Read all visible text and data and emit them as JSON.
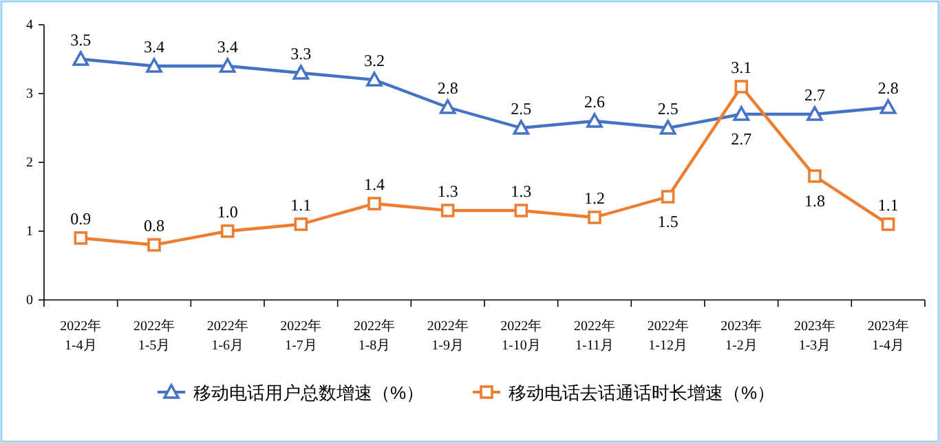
{
  "chart_data": {
    "type": "line",
    "categories": [
      "2022年\n1-4月",
      "2022年\n1-5月",
      "2022年\n1-6月",
      "2022年\n1-7月",
      "2022年\n1-8月",
      "2022年\n1-9月",
      "2022年\n1-10月",
      "2022年\n1-11月",
      "2022年\n1-12月",
      "2023年\n1-2月",
      "2023年\n1-3月",
      "2023年\n1-4月"
    ],
    "series": [
      {
        "name": "移动电话用户总数增速（%）",
        "color": "#4472c4",
        "marker": "triangle",
        "values": [
          3.5,
          3.4,
          3.4,
          3.3,
          3.2,
          2.8,
          2.5,
          2.6,
          2.5,
          2.7,
          2.7,
          2.8
        ],
        "value_labels": [
          "3.5",
          "3.4",
          "3.4",
          "3.3",
          "3.2",
          "2.8",
          "2.5",
          "2.6",
          "2.5",
          "2.7",
          "2.7",
          "2.8"
        ]
      },
      {
        "name": "移动电话去话通话时长增速（%）",
        "color": "#ed7d31",
        "marker": "square",
        "values": [
          0.9,
          0.8,
          1.0,
          1.1,
          1.4,
          1.3,
          1.3,
          1.2,
          1.5,
          3.1,
          1.8,
          1.1
        ],
        "value_labels": [
          "0.9",
          "0.8",
          "1.0",
          "1.1",
          "1.4",
          "1.3",
          "1.3",
          "1.2",
          "1.5",
          "3.1",
          "1.8",
          "1.1"
        ]
      }
    ],
    "ylim": [
      0,
      4
    ],
    "yticks": [
      0,
      1,
      2,
      3,
      4
    ],
    "grid": false,
    "legend": "bottom",
    "line_style": "solid"
  }
}
